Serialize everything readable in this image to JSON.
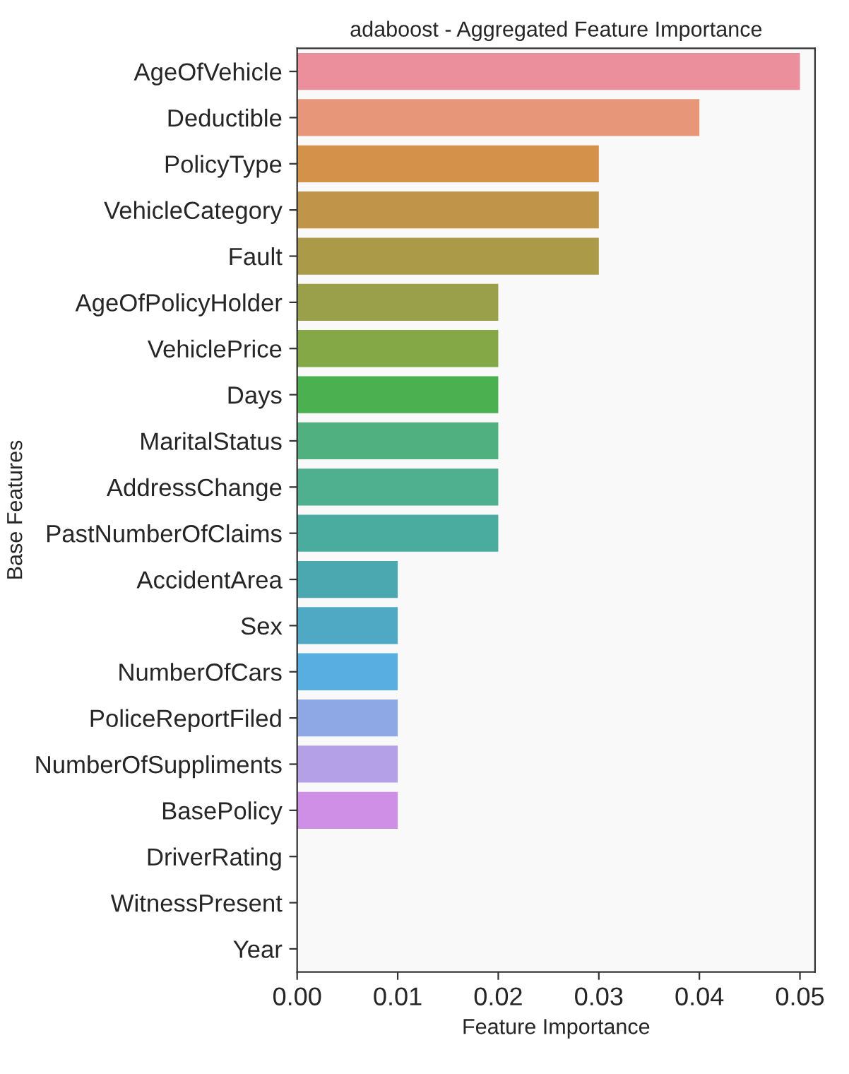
{
  "chart_data": {
    "type": "bar",
    "orientation": "horizontal",
    "title": "adaboost - Aggregated Feature Importance",
    "xlabel": "Feature Importance",
    "ylabel": "Base Features",
    "categories": [
      "AgeOfVehicle",
      "Deductible",
      "PolicyType",
      "VehicleCategory",
      "Fault",
      "AgeOfPolicyHolder",
      "VehiclePrice",
      "Days",
      "MaritalStatus",
      "AddressChange",
      "PastNumberOfClaims",
      "AccidentArea",
      "Sex",
      "NumberOfCars",
      "PoliceReportFiled",
      "NumberOfSuppliments",
      "BasePolicy",
      "DriverRating",
      "WitnessPresent",
      "Year"
    ],
    "values": [
      0.05,
      0.04,
      0.03,
      0.03,
      0.03,
      0.02,
      0.02,
      0.02,
      0.02,
      0.02,
      0.02,
      0.01,
      0.01,
      0.01,
      0.01,
      0.01,
      0.01,
      0,
      0,
      0
    ],
    "colors": [
      "#ec8f9c",
      "#e8967a",
      "#d4914a",
      "#c0954a",
      "#ab9a48",
      "#9aa04a",
      "#85a846",
      "#4bb04f",
      "#50b080",
      "#4eb08e",
      "#4aab9f",
      "#4ba8b0",
      "#4fa9c4",
      "#58aee0",
      "#8ea8e6",
      "#b3a0e6",
      "#cf8fe6",
      "#e28ed4",
      "#e88cbc",
      "#ea8ea8"
    ],
    "xlim": [
      0,
      0.0515
    ],
    "xticks": [
      {
        "value": 0,
        "label": "0.00"
      },
      {
        "value": 0.01,
        "label": "0.01"
      },
      {
        "value": 0.02,
        "label": "0.02"
      },
      {
        "value": 0.03,
        "label": "0.03"
      },
      {
        "value": 0.04,
        "label": "0.04"
      },
      {
        "value": 0.05,
        "label": "0.05"
      }
    ],
    "grid": false,
    "legend": false
  }
}
